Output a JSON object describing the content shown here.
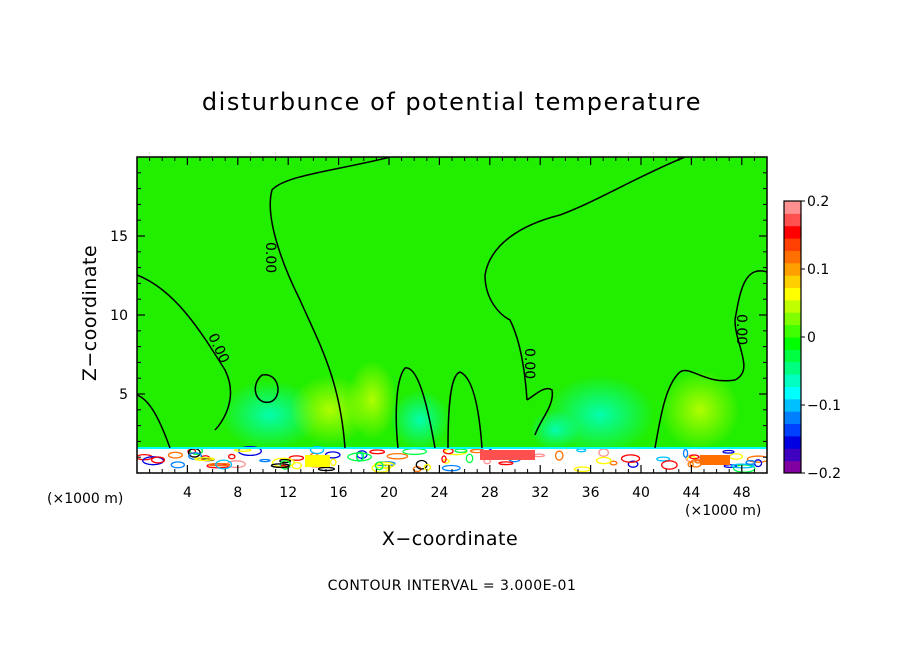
{
  "chart_data": {
    "type": "heatmap",
    "title": "disturbunce of potential temperature",
    "xlabel": "X−coordinate",
    "ylabel": "Z−coordinate",
    "x_unit_left": "(×1000 m)",
    "x_unit_right": "(×1000 m)",
    "xlim": [
      0,
      50
    ],
    "ylim": [
      0,
      20
    ],
    "x_ticks": [
      4,
      8,
      12,
      16,
      20,
      24,
      28,
      32,
      36,
      40,
      44,
      48
    ],
    "x_tick_labels": [
      "4",
      "8",
      "12",
      "16",
      "20",
      "24",
      "28",
      "32",
      "36",
      "40",
      "44",
      "48"
    ],
    "y_ticks": [
      5,
      10,
      15
    ],
    "y_tick_labels": [
      "5",
      "10",
      "15"
    ],
    "contour_interval_text": "CONTOUR INTERVAL = 3.000E-01",
    "contour_labels": [
      "0.00",
      "0.00",
      "0.00",
      "0.00"
    ],
    "colorbar": {
      "min": -0.2,
      "max": 0.2,
      "tick_values": [
        0.2,
        0.1,
        0,
        -0.1,
        -0.2
      ],
      "tick_labels": [
        "0.2",
        "0.1",
        "0",
        "−0.1",
        "−0.2"
      ],
      "colors": [
        "#8000a0",
        "#4000c0",
        "#0000e0",
        "#0040ff",
        "#0080ff",
        "#00c0ff",
        "#00ffff",
        "#00ffc0",
        "#00ff80",
        "#00ff40",
        "#00ff00",
        "#40ff00",
        "#80ff00",
        "#c0ff00",
        "#ffff00",
        "#ffd000",
        "#ffa000",
        "#ff7000",
        "#ff4000",
        "#ff0000",
        "#ff5050",
        "#ff9090"
      ]
    },
    "background_color": "#22ee00"
  }
}
